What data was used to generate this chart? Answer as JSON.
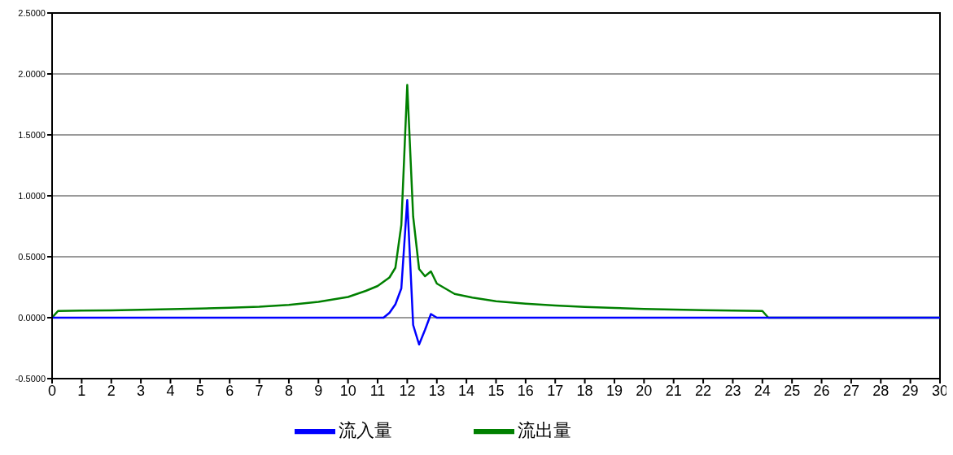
{
  "chart_data": {
    "type": "line",
    "xlim": [
      0,
      30
    ],
    "xticks": [
      0,
      1,
      2,
      3,
      4,
      5,
      6,
      7,
      8,
      9,
      10,
      11,
      12,
      13,
      14,
      15,
      16,
      17,
      18,
      19,
      20,
      21,
      22,
      23,
      24,
      25,
      26,
      27,
      28,
      29,
      30
    ],
    "ylim": [
      -0.5,
      2.5
    ],
    "yticks": [
      {
        "value": -0.5,
        "label": "-0.5000"
      },
      {
        "value": 0,
        "label": "0.0000"
      },
      {
        "value": 0.5,
        "label": "0.5000"
      },
      {
        "value": 1,
        "label": "1.0000"
      },
      {
        "value": 1.5,
        "label": "1.5000"
      },
      {
        "value": 2,
        "label": "2.0000"
      },
      {
        "value": 2.5,
        "label": "2.5000"
      }
    ],
    "grid": "y",
    "legend": "bottom",
    "marker": "none",
    "line_style": "solid",
    "series": [
      {
        "name": "流出量",
        "color": "#008000",
        "x": [
          0,
          0.2,
          1,
          2,
          3,
          4,
          5,
          6,
          7,
          8,
          9,
          10,
          10.6,
          11,
          11.4,
          11.6,
          11.8,
          12,
          12.2,
          12.4,
          12.6,
          12.8,
          13,
          13.6,
          14.2,
          15,
          16,
          17,
          18,
          19,
          20,
          21,
          22,
          23,
          24,
          24.2,
          30
        ],
        "values": [
          0,
          0.055,
          0.058,
          0.06,
          0.065,
          0.07,
          0.075,
          0.082,
          0.09,
          0.105,
          0.13,
          0.17,
          0.22,
          0.26,
          0.33,
          0.41,
          0.76,
          1.91,
          0.83,
          0.4,
          0.34,
          0.38,
          0.28,
          0.195,
          0.165,
          0.135,
          0.115,
          0.1,
          0.088,
          0.08,
          0.072,
          0.066,
          0.062,
          0.058,
          0.055,
          0,
          0
        ]
      },
      {
        "name": "流入量",
        "color": "#0000ff",
        "x": [
          0,
          11.2,
          11.4,
          11.6,
          11.8,
          12,
          12.2,
          12.4,
          12.6,
          12.8,
          13,
          30
        ],
        "values": [
          0,
          0,
          0.04,
          0.11,
          0.24,
          0.965,
          -0.06,
          -0.22,
          -0.1,
          0.03,
          0,
          0
        ]
      }
    ]
  }
}
